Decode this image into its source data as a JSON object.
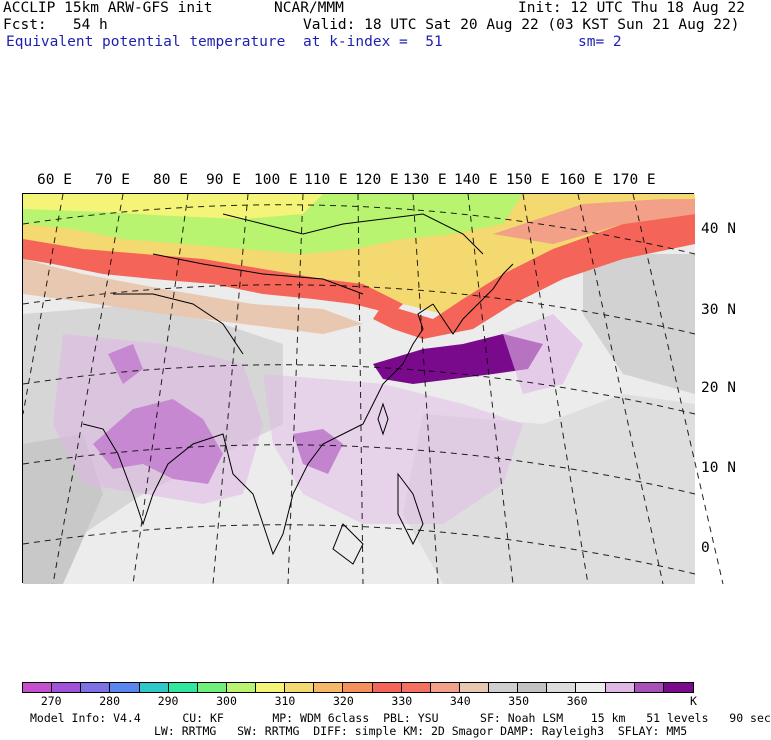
{
  "header": {
    "left": [
      "ACCLIP 15km ARW-GFS init",
      "Fcst:   54 h"
    ],
    "center": "NCAR/MMM",
    "init": "Init: 12 UTC Thu 18 Aug 22",
    "valid": "Valid: 18 UTC Sat 20 Aug 22 (03 KST Sun 21 Aug 22)",
    "field": "Equivalent potential temperature",
    "level": "at k-index =  51",
    "smooth": "sm= 2"
  },
  "map": {
    "lon_labels": [
      "60 E",
      "70 E",
      "80 E",
      "90 E",
      "100 E",
      "110 E",
      "120 E",
      "130 E",
      "140 E",
      "150 E",
      "160 E",
      "170 E"
    ],
    "lat_labels": [
      "40 N",
      "30 N",
      "20 N",
      "10 N",
      "0"
    ]
  },
  "colorbar": {
    "unit": "K",
    "colors": [
      "#c34fce",
      "#a052d8",
      "#8070e6",
      "#5a86f0",
      "#2fc8c8",
      "#2ee8a0",
      "#6ef07a",
      "#b8f470",
      "#f4f478",
      "#f4d870",
      "#f4b868",
      "#f4905c",
      "#f46458",
      "#f47060",
      "#f2a088",
      "#e8c8b0",
      "#cfcfcf",
      "#c2c2c2",
      "#dcdcdc",
      "#ececec",
      "#e0b8e6",
      "#a650b8",
      "#7a0a8c"
    ],
    "labels": [
      "270",
      "280",
      "290",
      "300",
      "310",
      "320",
      "330",
      "340",
      "350",
      "360"
    ]
  },
  "footer": {
    "line1": "Model Info: V4.4      CU: KF       MP: WDM 6class  PBL: YSU      SF: Noah LSM    15 km   51 levels   90 sec",
    "line2": "LW: RRTMG   SW: RRTMG  DIFF: simple KM: 2D Smagor DAMP: Rayleigh3  SFLAY: MM5"
  }
}
